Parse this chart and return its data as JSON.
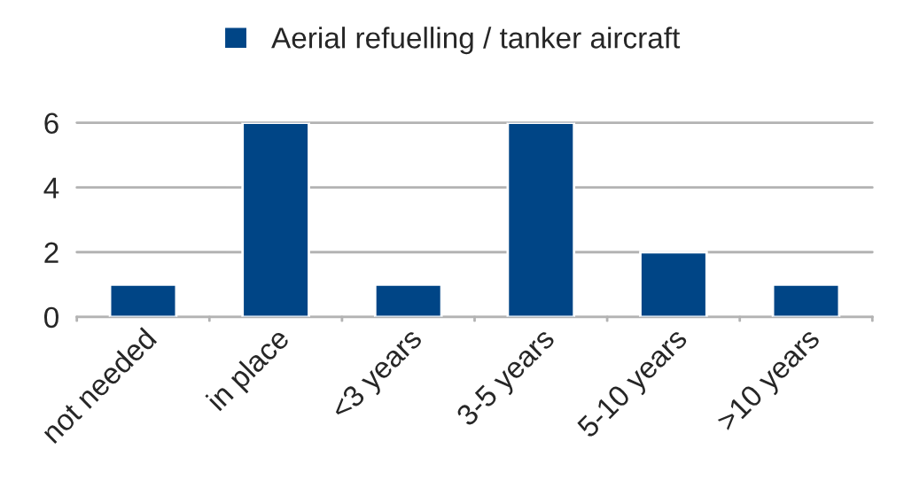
{
  "chart_data": {
    "type": "bar",
    "categories": [
      "not needed",
      "in place",
      "<3 years",
      "3-5 years",
      "5-10 years",
      ">10 years"
    ],
    "series": [
      {
        "name": "Aerial refuelling / tanker aircraft",
        "color": "#004586",
        "values": [
          1,
          6,
          1,
          6,
          2,
          1
        ]
      }
    ],
    "ylim": [
      0,
      6
    ],
    "yticks": [
      0,
      2,
      4,
      6
    ],
    "grid": "y",
    "legend": "top"
  }
}
